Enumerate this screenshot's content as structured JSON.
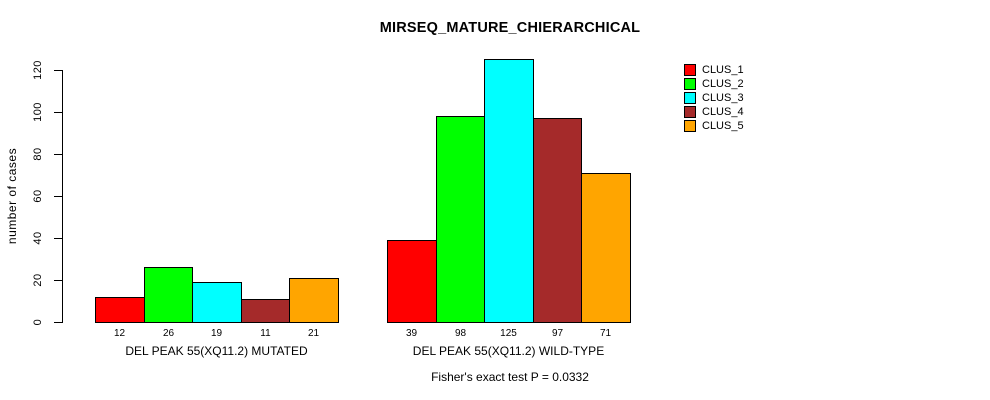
{
  "title": "MIRSEQ_MATURE_CHIERARCHICAL",
  "footer": "Fisher's exact test P = 0.0332",
  "y_axis": {
    "label": "number of cases",
    "ticks": [
      0,
      20,
      40,
      60,
      80,
      100,
      120
    ]
  },
  "legend": {
    "items": [
      {
        "label": "CLUS_1",
        "color": "#FF0000"
      },
      {
        "label": "CLUS_2",
        "color": "#00FF00"
      },
      {
        "label": "CLUS_3",
        "color": "#00FFFF"
      },
      {
        "label": "CLUS_4",
        "color": "#A52A2A"
      },
      {
        "label": "CLUS_5",
        "color": "#FFA500"
      }
    ]
  },
  "chart_data": {
    "type": "bar",
    "title": "MIRSEQ_MATURE_CHIERARCHICAL",
    "xlabel": "",
    "ylabel": "number of cases",
    "ylim": [
      0,
      125
    ],
    "grid": false,
    "legend_position": "top-right",
    "categories": [
      "DEL PEAK 55(XQ11.2) MUTATED",
      "DEL PEAK 55(XQ11.2) WILD-TYPE"
    ],
    "series": [
      {
        "name": "CLUS_1",
        "color": "#FF0000",
        "values": [
          12,
          39
        ]
      },
      {
        "name": "CLUS_2",
        "color": "#00FF00",
        "values": [
          26,
          98
        ]
      },
      {
        "name": "CLUS_3",
        "color": "#00FFFF",
        "values": [
          19,
          125
        ]
      },
      {
        "name": "CLUS_4",
        "color": "#A52A2A",
        "values": [
          11,
          97
        ]
      },
      {
        "name": "CLUS_5",
        "color": "#FFA500",
        "values": [
          21,
          71
        ]
      }
    ],
    "bar_value_labels": [
      [
        12,
        26,
        19,
        11,
        21
      ],
      [
        39,
        98,
        125,
        97,
        71
      ]
    ],
    "annotation": "Fisher's exact test P = 0.0332"
  }
}
